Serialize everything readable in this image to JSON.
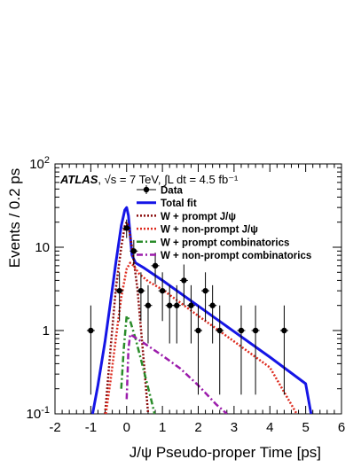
{
  "chart_data": {
    "type": "scatter",
    "xlabel": "J/ψ Pseudo-proper Time [ps]",
    "ylabel": "Events / 0.2 ps",
    "xlim": [
      -2,
      6
    ],
    "ylim": [
      0.1,
      100
    ],
    "yscale": "log",
    "grid": false,
    "legend_position": "top-right",
    "x_ticks": [
      "-2",
      "-1",
      "0",
      "1",
      "2",
      "3",
      "4",
      "5",
      "6"
    ],
    "annotation": {
      "experiment": "ATLAS",
      "condition": ", √s = 7 TeV, ∫L dt = 4.5 fb⁻¹"
    },
    "series": [
      {
        "name": "Data",
        "kind": "points",
        "color": "#000000",
        "x": [
          -1.0,
          -0.2,
          0.0,
          0.2,
          0.4,
          0.6,
          0.8,
          1.0,
          1.2,
          1.4,
          1.6,
          1.8,
          2.0,
          2.2,
          2.4,
          2.6,
          3.2,
          3.6,
          4.4
        ],
        "y": [
          1,
          3,
          17,
          9,
          3,
          2,
          6,
          3,
          2,
          2,
          4,
          2,
          1,
          3,
          2,
          1,
          1,
          1,
          1
        ],
        "err_low": [
          0.83,
          1.7,
          4.1,
          2.9,
          1.7,
          1.3,
          2.4,
          1.7,
          1.3,
          1.3,
          2.0,
          1.3,
          0.83,
          1.7,
          1.3,
          0.83,
          0.83,
          0.83,
          0.83
        ],
        "err_high": [
          1.0,
          2.0,
          4.5,
          3.2,
          2.0,
          1.5,
          2.6,
          2.0,
          1.5,
          1.5,
          2.2,
          1.5,
          1.0,
          2.0,
          1.5,
          1.0,
          1.0,
          1.0,
          1.0
        ]
      },
      {
        "name": "Total fit",
        "kind": "curve",
        "color": "#1515e6",
        "dash": "solid",
        "x": [
          -0.95,
          -0.8,
          -0.6,
          -0.45,
          -0.3,
          -0.15,
          -0.05,
          0.0,
          0.05,
          0.1,
          0.15,
          0.25,
          0.5,
          1.0,
          2.0,
          3.0,
          4.0,
          5.0,
          5.15
        ],
        "y": [
          0.1,
          0.22,
          0.75,
          2.2,
          6.5,
          18,
          28,
          30,
          24,
          14,
          8,
          6.5,
          5.6,
          4.0,
          1.97,
          0.97,
          0.48,
          0.23,
          0.1
        ]
      },
      {
        "name": "W + prompt J/ψ",
        "kind": "curve",
        "color": "#8b0d0d",
        "dash": "dotted",
        "x": [
          -0.6,
          -0.45,
          -0.3,
          -0.15,
          -0.05,
          0.0,
          0.05,
          0.15,
          0.3,
          0.45,
          0.6
        ],
        "y": [
          0.1,
          0.6,
          3.2,
          10,
          18,
          20,
          18,
          10,
          3.2,
          0.6,
          0.1
        ]
      },
      {
        "name": "W + non-prompt J/ψ",
        "kind": "curve",
        "color": "#dd2a1e",
        "dash": "dotted",
        "x": [
          -0.58,
          -0.45,
          -0.3,
          -0.15,
          0.0,
          0.1,
          0.2,
          0.35,
          0.6,
          1.0,
          2.0,
          3.0,
          4.0,
          4.75
        ],
        "y": [
          0.1,
          0.25,
          0.8,
          2.5,
          5.5,
          6.5,
          6.0,
          4.8,
          3.9,
          3.1,
          1.5,
          0.74,
          0.36,
          0.1
        ]
      },
      {
        "name": "W + prompt combinatorics",
        "kind": "curve",
        "color": "#2a8c2a",
        "dash": "dashdot",
        "x": [
          -0.15,
          -0.08,
          0.0,
          0.1,
          0.25,
          0.4,
          0.55,
          0.7,
          0.78
        ],
        "y": [
          0.2,
          0.6,
          1.5,
          1.3,
          0.8,
          0.45,
          0.25,
          0.14,
          0.1
        ]
      },
      {
        "name": "W + non-prompt combinatorics",
        "kind": "curve",
        "color": "#9b1bab",
        "dash": "dashdot",
        "x": [
          0.0,
          0.05,
          0.1,
          0.5,
          1.0,
          1.5,
          2.0,
          2.5,
          2.8
        ],
        "y": [
          0.15,
          0.6,
          0.9,
          0.7,
          0.5,
          0.35,
          0.22,
          0.13,
          0.1
        ]
      }
    ]
  }
}
